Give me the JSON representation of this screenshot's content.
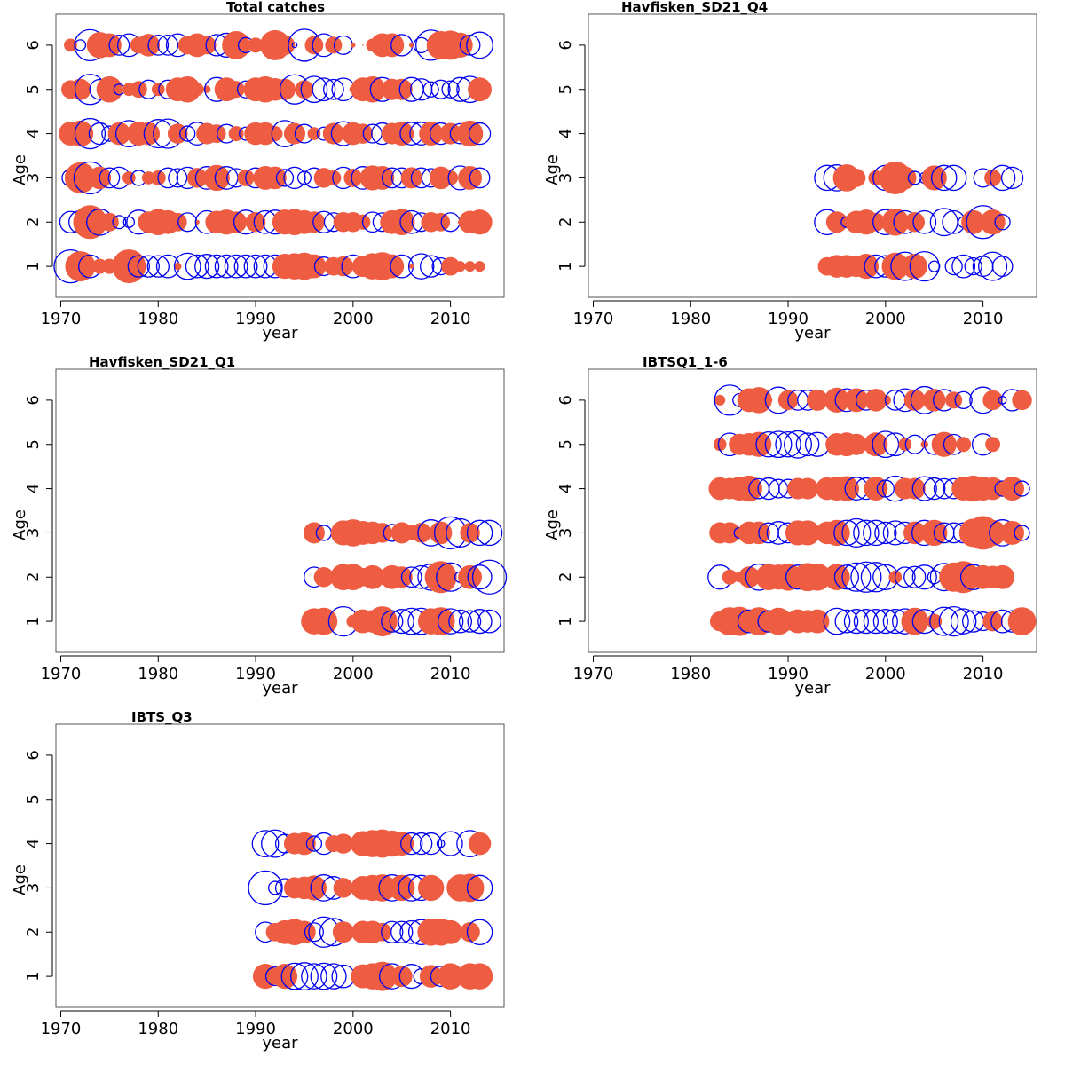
{
  "chart_data": {
    "type": "scatter",
    "subtype": "bubble-residuals",
    "encoding": "positive residual = filled red circle, negative residual = open blue circle, radius proportional to sqrt(|residual|)",
    "colors": {
      "positive": "#EE5C42",
      "negative": "#0000EE",
      "axis": "#000000",
      "frame": "#555555"
    },
    "xlabel": "year",
    "ylabel": "Age",
    "xlim": [
      1969.5,
      2015.5
    ],
    "ylim": [
      0.3,
      6.7
    ],
    "xticks": [
      1970,
      1980,
      1990,
      2000,
      2010
    ],
    "yticks": [
      1,
      2,
      3,
      4,
      5,
      6
    ],
    "panels": [
      {
        "title": "Total catches",
        "show_ylabel": true,
        "start_year": 1971,
        "ages": {
          "6": [
            0.15,
            -0.1,
            -0.85,
            0.6,
            0.5,
            -0.35,
            -0.45,
            0.25,
            0.45,
            -0.35,
            -0.35,
            -0.45,
            0.3,
            0.5,
            0.3,
            -0.4,
            -0.5,
            0.7,
            -0.2,
            0.2,
            0.02,
            0.8,
            0.35,
            -0.02,
            -0.9,
            0.3,
            -0.45,
            0.25,
            -0.3,
            0.02,
            0.0,
            0.15,
            0.5,
            0.5,
            -0.4,
            0.02,
            -0.2,
            -0.8,
            0.7,
            0.75,
            0.55,
            -0.35,
            -0.6
          ],
          "5": [
            0.3,
            0.4,
            -0.8,
            -0.35,
            0.6,
            -0.1,
            0.15,
            0.25,
            -0.3,
            0.15,
            -0.3,
            0.5,
            0.6,
            0.15,
            0.05,
            -0.5,
            0.5,
            0.25,
            -0.25,
            0.5,
            0.6,
            0.45,
            0.4,
            -0.75,
            0.3,
            -0.6,
            -0.45,
            -0.35,
            -0.45,
            0.05,
            0.5,
            0.6,
            -0.5,
            0.4,
            0.4,
            -0.5,
            -0.4,
            -0.2,
            -0.3,
            -0.25,
            -0.5,
            -0.6,
            0.5
          ],
          "4": [
            0.5,
            0.6,
            -0.8,
            -0.4,
            -0.2,
            0.45,
            -0.6,
            0.5,
            0.45,
            -0.7,
            -0.75,
            0.35,
            -0.2,
            -0.45,
            0.4,
            0.3,
            -0.3,
            0.2,
            -0.15,
            0.45,
            0.45,
            0.2,
            -0.6,
            0.4,
            -0.3,
            0.15,
            -0.15,
            0.4,
            -0.5,
            0.45,
            0.35,
            -0.3,
            -0.4,
            0.4,
            0.5,
            -0.45,
            -0.45,
            0.5,
            -0.4,
            0.4,
            -0.35,
            0.6,
            -0.4
          ],
          "3": [
            -0.25,
            0.85,
            -0.9,
            0.45,
            -0.35,
            -0.4,
            0.15,
            -0.2,
            0.15,
            0.2,
            -0.35,
            -0.3,
            -0.4,
            0.35,
            -0.45,
            0.6,
            -0.45,
            -0.3,
            0.25,
            -0.35,
            0.5,
            0.45,
            -0.25,
            -0.4,
            -0.15,
            -0.35,
            0.35,
            0.2,
            -0.4,
            0.3,
            -0.45,
            0.55,
            0.5,
            -0.35,
            -0.35,
            0.4,
            -0.35,
            -0.3,
            0.45,
            0.2,
            -0.5,
            0.5,
            -0.35
          ],
          "2": [
            -0.4,
            -0.45,
            1.0,
            -0.6,
            0.3,
            -0.15,
            -0.1,
            -0.5,
            0.4,
            0.6,
            0.5,
            0.3,
            -0.3,
            0.02,
            -0.45,
            0.45,
            0.55,
            0.4,
            -0.5,
            0.35,
            -0.45,
            -0.5,
            0.55,
            0.6,
            0.5,
            0.4,
            -0.4,
            -0.3,
            0.35,
            0.35,
            0.2,
            -0.35,
            -0.3,
            0.5,
            0.6,
            -0.45,
            -0.3,
            0.35,
            0.3,
            -0.3,
            0.02,
            0.45,
            0.55
          ],
          "1": [
            -0.95,
            0.8,
            -0.45,
            0.2,
            0.2,
            -0.05,
            1.0,
            -0.4,
            -0.4,
            -0.4,
            -0.45,
            0.05,
            -0.6,
            -0.45,
            -0.5,
            -0.45,
            -0.45,
            -0.45,
            -0.45,
            -0.45,
            -0.45,
            -0.45,
            0.55,
            0.6,
            0.65,
            0.5,
            -0.3,
            0.3,
            0.35,
            -0.45,
            0.4,
            0.6,
            0.7,
            0.5,
            -0.45,
            0.02,
            -0.55,
            -0.4,
            -0.25,
            0.3,
            0.1,
            0.1,
            0.1
          ]
        }
      },
      {
        "title": "Havfisken_SD21_Q4",
        "show_ylabel": true,
        "start_year": 1994,
        "ages": {
          "3": [
            -0.55,
            -0.6,
            0.65,
            0.3,
            null,
            0.2,
            -0.55,
            0.95,
            0.45,
            -0.15,
            -0.1,
            0.55,
            -0.55,
            -0.55,
            null,
            null,
            -0.3,
            0.25,
            -0.55,
            -0.4
          ],
          "2": [
            -0.55,
            0.4,
            -0.1,
            0.45,
            0.55,
            0.3,
            -0.55,
            0.65,
            -0.45,
            0.35,
            -0.45,
            null,
            -0.65,
            -0.45,
            -0.1,
            0.5,
            -0.95,
            0.55,
            -0.2,
            null
          ],
          "1": [
            0.3,
            0.45,
            0.45,
            0.4,
            0.55,
            -0.45,
            -0.4,
            0.65,
            -0.7,
            0.55,
            -0.75,
            -0.1,
            null,
            -0.25,
            -0.45,
            -0.25,
            -0.35,
            -0.7,
            -0.35,
            null
          ]
        }
      },
      {
        "title": "Havfisken_SD21_Q1",
        "show_ylabel": true,
        "start_year": 1996,
        "ages": {
          "3": [
            0.4,
            -0.2,
            null,
            0.55,
            0.65,
            0.5,
            0.45,
            0.35,
            -0.25,
            0.4,
            0.2,
            0.35,
            -0.6,
            0.45,
            -0.9,
            -0.7,
            0.35,
            -0.55,
            -0.55
          ],
          "2": [
            -0.35,
            0.35,
            null,
            0.6,
            0.6,
            0.3,
            0.5,
            0.2,
            0.5,
            0.4,
            -0.35,
            -0.45,
            -0.6,
            0.9,
            -0.7,
            -0.1,
            0.5,
            -0.5,
            -1.0
          ],
          "1": [
            0.6,
            0.65,
            null,
            -0.75,
            0.15,
            0.5,
            0.45,
            0.8,
            -0.4,
            -0.5,
            -0.6,
            -0.6,
            0.6,
            0.7,
            -0.55,
            -0.45,
            -0.4,
            -0.5,
            -0.45
          ]
        }
      },
      {
        "title": "IBTSQ1_1-6",
        "show_ylabel": true,
        "start_year": 1983,
        "ages": {
          "6": [
            0.1,
            -0.8,
            -0.15,
            0.5,
            0.6,
            0.05,
            -0.6,
            0.35,
            -0.35,
            -0.35,
            0.4,
            null,
            0.55,
            -0.45,
            0.5,
            -0.35,
            0.45,
            0.1,
            -0.35,
            -0.45,
            0.4,
            -0.65,
            0.45,
            -0.4,
            0.25,
            -0.25,
            null,
            -0.6,
            0.35,
            -0.05,
            -0.4,
            0.35
          ],
          "5": [
            0.15,
            -0.45,
            0.4,
            0.45,
            0.55,
            -0.55,
            -0.6,
            -0.55,
            -0.65,
            -0.45,
            -0.5,
            null,
            0.45,
            0.5,
            0.4,
            0.05,
            0.5,
            -0.6,
            -0.45,
            0.15,
            -0.3,
            0.05,
            -0.35,
            0.55,
            -0.35,
            0.2,
            null,
            -0.4,
            0.2
          ],
          "4": [
            0.45,
            0.4,
            0.5,
            0.6,
            -0.35,
            -0.4,
            -0.3,
            -0.3,
            0.4,
            0.4,
            null,
            0.45,
            0.5,
            0.55,
            -0.45,
            -0.4,
            0.5,
            -0.25,
            -0.55,
            0.4,
            0.4,
            -0.5,
            -0.4,
            -0.35,
            -0.35,
            0.5,
            0.6,
            0.5,
            0.45,
            -0.2,
            0.5,
            -0.2
          ],
          "3": [
            0.4,
            0.4,
            -0.1,
            0.45,
            0.45,
            -0.35,
            -0.45,
            -0.35,
            0.55,
            0.55,
            null,
            0.45,
            0.6,
            -0.55,
            -0.7,
            -0.55,
            -0.55,
            -0.4,
            -0.5,
            -0.4,
            0.45,
            -0.55,
            0.6,
            -0.35,
            -0.35,
            -0.35,
            0.7,
            1.0,
            0.6,
            -0.6,
            0.5,
            -0.2
          ],
          "2": [
            -0.5,
            0.2,
            0.1,
            0.4,
            -0.6,
            0.6,
            0.55,
            0.65,
            -0.5,
            0.7,
            0.65,
            null,
            0.6,
            -0.5,
            -0.7,
            -0.8,
            -0.75,
            -0.55,
            0.15,
            -0.35,
            -0.4,
            -0.5,
            -0.15,
            -0.65,
            0.75,
            0.9,
            -0.55,
            0.5,
            0.45,
            0.5
          ],
          "1": [
            0.35,
            0.7,
            0.75,
            -0.45,
            0.7,
            -0.4,
            0.65,
            0.3,
            0.5,
            0.45,
            0.5,
            null,
            -0.6,
            -0.45,
            -0.5,
            -0.5,
            -0.5,
            -0.5,
            -0.5,
            -0.55,
            0.65,
            -0.5,
            0.2,
            -0.7,
            -0.75,
            -0.55,
            -0.4,
            -0.3,
            0.35,
            -0.45,
            -0.4,
            0.7
          ]
        }
      },
      {
        "title": "IBTS_Q3",
        "show_ylabel": true,
        "start_year": 1991,
        "ages": {
          "4": [
            -0.6,
            -0.65,
            -0.3,
            0.4,
            0.45,
            -0.2,
            -0.4,
            0.25,
            0.35,
            null,
            0.55,
            0.65,
            0.7,
            0.6,
            0.5,
            -0.4,
            -0.4,
            -0.4,
            -0.05,
            -0.5,
            null,
            -0.6,
            0.45
          ],
          "3": [
            -1.0,
            -0.15,
            -0.3,
            0.4,
            0.45,
            0.55,
            -0.6,
            -0.45,
            0.35,
            null,
            0.5,
            0.6,
            0.65,
            -0.6,
            0.6,
            -0.6,
            -0.55,
            0.6,
            null,
            null,
            0.65,
            0.7,
            -0.55
          ],
          "2": [
            -0.35,
            0.3,
            0.5,
            0.6,
            0.45,
            -0.3,
            -0.8,
            -0.65,
            0.4,
            null,
            0.45,
            0.45,
            0.3,
            -0.4,
            -0.4,
            -0.45,
            -0.55,
            0.65,
            0.65,
            0.5,
            0.1,
            0.35,
            -0.55
          ],
          "1": [
            0.55,
            -0.3,
            0.55,
            -0.6,
            -0.65,
            -0.55,
            -0.6,
            -0.55,
            -0.45,
            null,
            0.5,
            0.6,
            0.75,
            -0.55,
            0.4,
            -0.5,
            -0.2,
            0.45,
            -0.35,
            0.6,
            0.15,
            0.6,
            0.6
          ]
        }
      }
    ]
  }
}
